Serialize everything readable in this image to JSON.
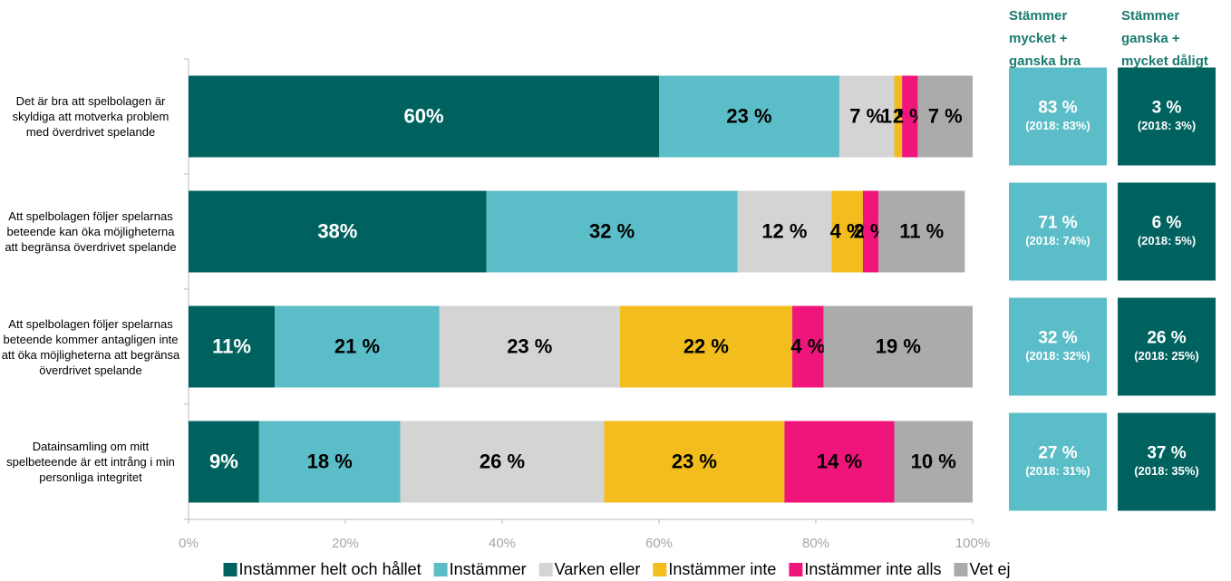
{
  "chart_data": {
    "type": "stacked-bar-horizontal",
    "categories": [
      "Det är bra att spelbolagen är skyldiga att motverka problem med överdrivet spelande",
      "Att spelbolagen följer spelarnas beteende kan öka möjligheterna att begränsa överdrivet spelande",
      "Att spelbolagen följer spelarnas beteende kommer antagligen inte att öka möjligheterna att begränsa överdrivet spelande",
      "Datainsamling om mitt spelbeteende är ett intrång i min personliga integritet"
    ],
    "series": [
      {
        "name": "Instämmer helt och hållet",
        "color": "#00625f",
        "values": [
          60,
          38,
          11,
          9
        ],
        "value_labels": [
          "60%",
          "38%",
          "11%",
          "9%"
        ]
      },
      {
        "name": "Instämmer",
        "color": "#5bbdc7",
        "values": [
          23,
          32,
          21,
          18
        ],
        "value_labels": [
          "23 %",
          "32 %",
          "21 %",
          "18 %"
        ]
      },
      {
        "name": "Varken eller",
        "color": "#d4d4d4",
        "values": [
          7,
          12,
          23,
          26
        ],
        "value_labels": [
          "7 %",
          "12 %",
          "23 %",
          "26 %"
        ]
      },
      {
        "name": "Instämmer inte",
        "color": "#f2bd1d",
        "values": [
          1,
          4,
          22,
          23
        ],
        "value_labels": [
          "1 %",
          "4 %",
          "22 %",
          "23 %"
        ]
      },
      {
        "name": "Instämmer inte alls",
        "color": "#f0157b",
        "values": [
          2,
          2,
          4,
          14
        ],
        "value_labels": [
          "2 %",
          "2 %",
          "4 %",
          "14 %"
        ]
      },
      {
        "name": "Vet ej",
        "color": "#ababab",
        "values": [
          7,
          11,
          19,
          10
        ],
        "value_labels": [
          "7 %",
          "11 %",
          "19 %",
          "10 %"
        ]
      }
    ],
    "xlim": [
      0,
      100
    ],
    "xticks": [
      {
        "value": 0,
        "label": "0%"
      },
      {
        "value": 20,
        "label": "20%"
      },
      {
        "value": 40,
        "label": "40%"
      },
      {
        "value": 60,
        "label": "60%"
      },
      {
        "value": 80,
        "label": "80%"
      },
      {
        "value": 100,
        "label": "100%"
      }
    ],
    "summary": [
      {
        "title": "Stämmer mycket + ganska bra",
        "color": "#5bbdc7",
        "values": [
          83,
          71,
          32,
          27
        ],
        "value_labels": [
          "83 %",
          "71 %",
          "32 %",
          "27 %"
        ],
        "notes": [
          "(2018: 83%)",
          "(2018: 74%)",
          "(2018: 32%)",
          "(2018: 31%)"
        ]
      },
      {
        "title": "Stämmer ganska + mycket dåligt",
        "color": "#00625f",
        "values": [
          3,
          6,
          26,
          37
        ],
        "value_labels": [
          "3 %",
          "6 %",
          "26 %",
          "37 %"
        ],
        "notes": [
          "(2018: 3%)",
          "(2018: 5%)",
          "(2018: 25%)",
          "(2018: 35%)"
        ]
      }
    ]
  }
}
